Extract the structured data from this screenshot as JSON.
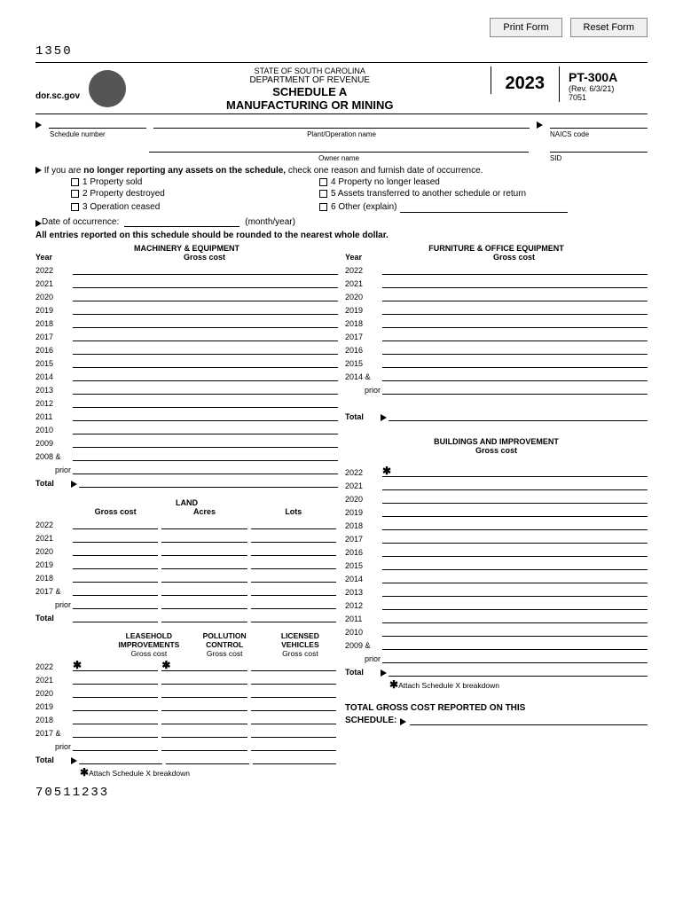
{
  "buttons": {
    "print": "Print Form",
    "reset": "Reset Form"
  },
  "form_code": "1350",
  "header": {
    "website": "dor.sc.gov",
    "state": "STATE OF SOUTH CAROLINA",
    "dept": "DEPARTMENT OF REVENUE",
    "title": "SCHEDULE A",
    "subtitle": "MANUFACTURING OR MINING",
    "year": "2023",
    "formnum": "PT-300A",
    "rev": "(Rev. 6/3/21)",
    "code": "7051"
  },
  "labels": {
    "schedule_number": "Schedule number",
    "plant_operation": "Plant/Operation name",
    "naics": "NAICS code",
    "owner": "Owner name",
    "sid": "SID",
    "no_longer": "If you are",
    "no_longer_bold": "no longer reporting any assets on the schedule,",
    "no_longer_end": "check one reason and furnish date of occurrence.",
    "r1": "1  Property sold",
    "r2": "2  Property destroyed",
    "r3": "3  Operation ceased",
    "r4": "4  Property no longer leased",
    "r5": "5  Assets transferred to another schedule or return",
    "r6": "6  Other (explain)",
    "date_occ": "Date of occurrence:",
    "month_year": "(month/year)",
    "rounding": "All entries reported on this schedule should be rounded to the nearest whole dollar.",
    "machinery": "MACHINERY & EQUIPMENT",
    "furniture": "FURNITURE & OFFICE EQUIPMENT",
    "buildings": "BUILDINGS AND IMPROVEMENT",
    "gross_cost": "Gross cost",
    "year_hdr": "Year",
    "total": "Total",
    "land": "LAND",
    "acres": "Acres",
    "lots": "Lots",
    "leasehold1": "LEASEHOLD",
    "leasehold2": "IMPROVEMENTS",
    "pollution1": "POLLUTION",
    "pollution2": "CONTROL",
    "licensed1": "LICENSED",
    "licensed2": "VEHICLES",
    "attach_x": "Attach Schedule X breakdown",
    "total_gross": "TOTAL GROSS COST REPORTED ON THIS",
    "schedule_colon": "SCHEDULE:",
    "prior": "prior"
  },
  "years_machinery": [
    "2022",
    "2021",
    "2020",
    "2019",
    "2018",
    "2017",
    "2016",
    "2015",
    "2014",
    "2013",
    "2012",
    "2011",
    "2010",
    "2009",
    "2008 &"
  ],
  "years_furniture": [
    "2022",
    "2021",
    "2020",
    "2019",
    "2018",
    "2017",
    "2016",
    "2015",
    "2014 &"
  ],
  "years_buildings": [
    "2022",
    "2021",
    "2020",
    "2019",
    "2018",
    "2017",
    "2016",
    "2015",
    "2014",
    "2013",
    "2012",
    "2011",
    "2010",
    "2009 &"
  ],
  "years_land": [
    "2022",
    "2021",
    "2020",
    "2019",
    "2018",
    "2017 &"
  ],
  "years_lease": [
    "2022",
    "2021",
    "2020",
    "2019",
    "2018",
    "2017 &"
  ],
  "barcode": "70511233"
}
